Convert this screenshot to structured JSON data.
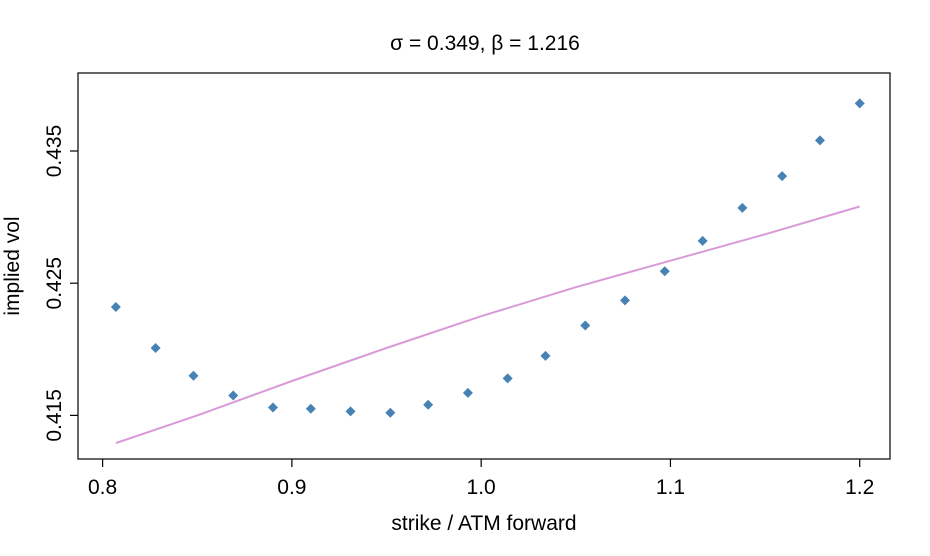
{
  "chart_data": {
    "type": "scatter",
    "title": "σ = 0.349, β = 1.216",
    "xlabel": "strike / ATM forward",
    "ylabel": "implied vol",
    "xlim": [
      0.787,
      1.216
    ],
    "ylim": [
      0.4117,
      0.4409
    ],
    "xticks": [
      0.8,
      0.9,
      1.0,
      1.1,
      1.2
    ],
    "xtick_labels": [
      "0.8",
      "0.9",
      "1.0",
      "1.1",
      "1.2"
    ],
    "yticks": [
      0.415,
      0.425,
      0.435
    ],
    "ytick_labels": [
      "0.415",
      "0.425",
      "0.435"
    ],
    "grid": false,
    "series": [
      {
        "kind": "points",
        "marker": "diamond",
        "color": "#4682b4",
        "x": [
          0.807,
          0.828,
          0.848,
          0.869,
          0.89,
          0.91,
          0.931,
          0.952,
          0.972,
          0.993,
          1.014,
          1.034,
          1.055,
          1.076,
          1.097,
          1.117,
          1.138,
          1.159,
          1.179,
          1.2
        ],
        "y": [
          0.4232,
          0.4201,
          0.418,
          0.4165,
          0.4156,
          0.4155,
          0.4153,
          0.4152,
          0.4158,
          0.4167,
          0.4178,
          0.4195,
          0.4218,
          0.4237,
          0.4259,
          0.4282,
          0.4307,
          0.4331,
          0.4358,
          0.4386
        ]
      },
      {
        "kind": "line",
        "color": "#d89ad8",
        "x": [
          0.807,
          0.85,
          0.9,
          0.95,
          1.0,
          1.05,
          1.1,
          1.15,
          1.2
        ],
        "y": [
          0.4129,
          0.415,
          0.4176,
          0.4201,
          0.4225,
          0.4247,
          0.4267,
          0.4287,
          0.4308
        ]
      }
    ]
  }
}
